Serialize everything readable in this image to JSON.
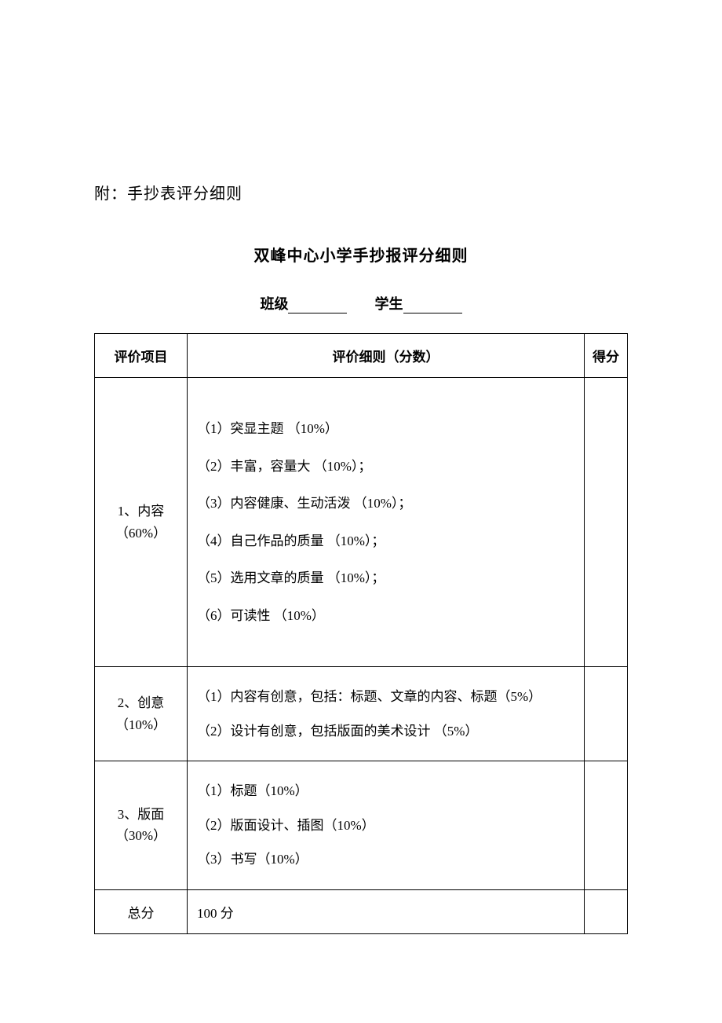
{
  "intro": "附：手抄表评分细则",
  "title": "双峰中心小学手抄报评分细则",
  "formLine": {
    "classLabel": "班级",
    "studentLabel": "学生"
  },
  "headers": {
    "item": "评价项目",
    "criteria": "评价细则（分数）",
    "score": "得分"
  },
  "rows": [
    {
      "item": "1、内容（60%）",
      "criteria": [
        "（1）突显主题 （10%）",
        "（2）丰富，容量大 （10%）；",
        "（3）内容健康、生动活泼 （10%）；",
        "（4）自己作品的质量 （10%）；",
        "（5）选用文章的质量 （10%）；",
        "（6）可读性 （10%）"
      ]
    },
    {
      "item": "2、创意（10%）",
      "criteria": [
        "（1）内容有创意，包括：标题、文章的内容、标题（5%）",
        "（2）设计有创意，包括版面的美术设计 （5%）"
      ]
    },
    {
      "item": "3、版面（30%）",
      "criteria": [
        "（1）标题（10%）",
        "（2）版面设计、插图（10%）",
        "（3）书写（10%）"
      ]
    }
  ],
  "total": {
    "label": "总分",
    "value": "100 分"
  }
}
